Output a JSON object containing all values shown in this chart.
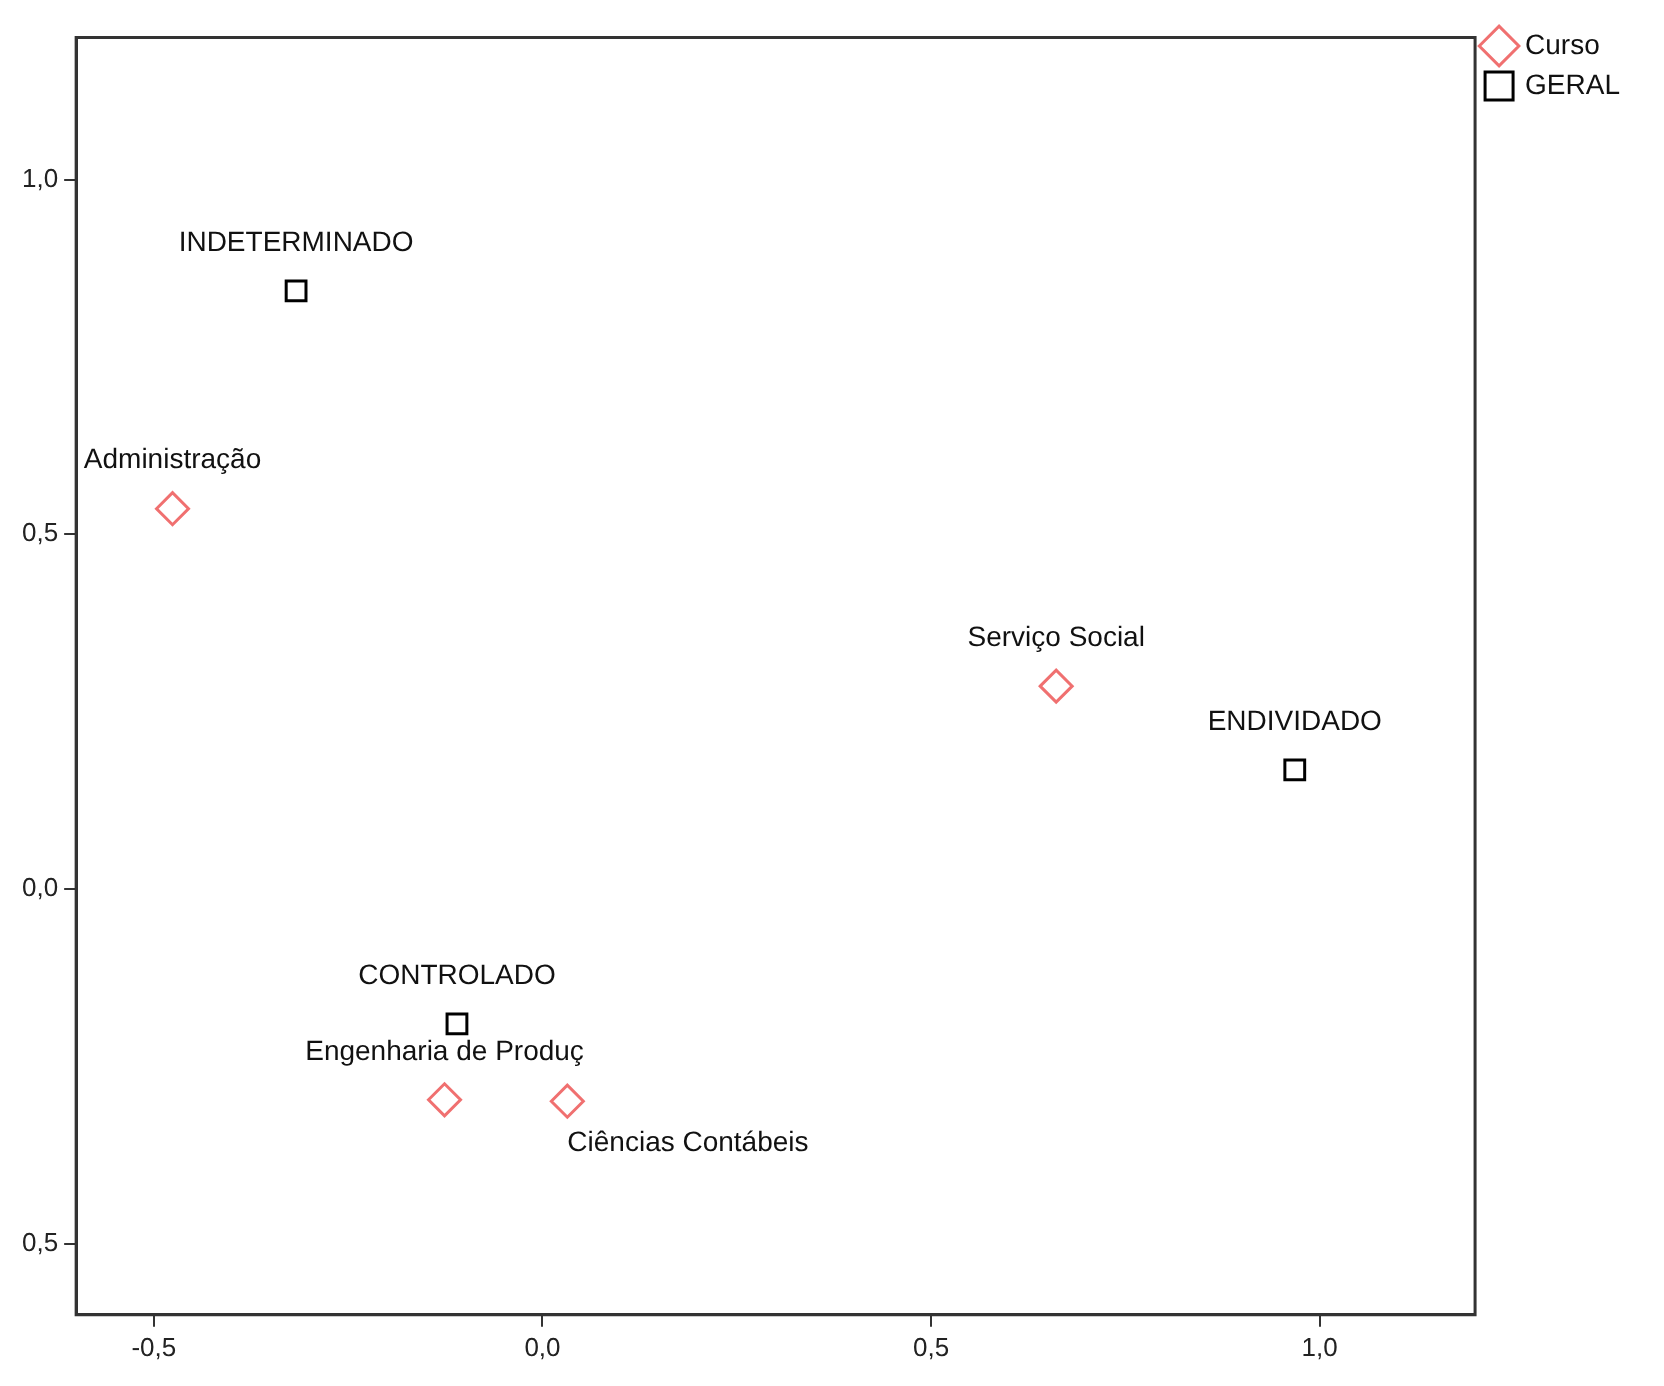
{
  "chart_data": {
    "type": "scatter",
    "series": [
      {
        "name": "Curso",
        "color": "#f07070",
        "marker": "diamond",
        "x": [
          -0.476,
          0.661,
          -0.126,
          0.032
        ],
        "values": [
          0.536,
          0.286,
          -0.297,
          -0.299
        ]
      },
      {
        "name": "GERAL",
        "color": "#000000",
        "marker": "square",
        "x": [
          -0.317,
          0.968,
          -0.11
        ],
        "values": [
          0.843,
          0.168,
          -0.19
        ]
      }
    ],
    "annotations": [
      {
        "text": "Administração",
        "x": -0.476,
        "y": 0.536
      },
      {
        "text": "Serviço Social",
        "x": 0.661,
        "y": 0.286
      },
      {
        "text": "Engenharia de Produç",
        "x": -0.126,
        "y": -0.297
      },
      {
        "text": "Ciências Contábeis",
        "x": 0.032,
        "y": -0.299
      },
      {
        "text": "INDETERMINADO",
        "x": -0.317,
        "y": 0.843
      },
      {
        "text": "ENDIVIDADO",
        "x": 0.968,
        "y": 0.168
      },
      {
        "text": "CONTROLADO",
        "x": -0.11,
        "y": -0.19
      }
    ],
    "xlim": [
      -0.6,
      1.2
    ],
    "ylim": [
      -0.6,
      1.2
    ],
    "xticks": [
      {
        "value": -0.5,
        "label": "-0,5"
      },
      {
        "value": 0,
        "label": "0,0"
      },
      {
        "value": 0.5,
        "label": "0,5"
      },
      {
        "value": 1,
        "label": "1,0"
      }
    ],
    "yticks": [
      {
        "value": -0.5,
        "label": "0,5"
      },
      {
        "value": 0,
        "label": "0,0"
      },
      {
        "value": 0.5,
        "label": "0,5"
      },
      {
        "value": 1,
        "label": "1,0"
      }
    ],
    "grid": false,
    "legend": "top right"
  }
}
